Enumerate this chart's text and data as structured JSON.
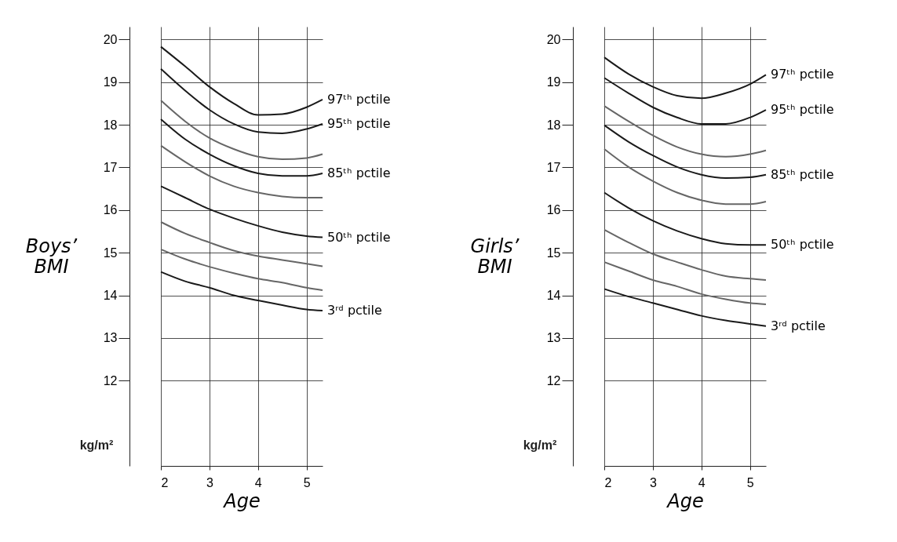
{
  "chart_data": [
    {
      "type": "line",
      "ylabel": "Boys’ BMI",
      "xlabel": "Age",
      "annotations": [
        "kg/m²"
      ],
      "xlim": [
        2,
        5.33
      ],
      "xticks": [
        2,
        3,
        4,
        5
      ],
      "ylim": [
        10,
        20.3
      ],
      "yticks": [
        12,
        13,
        14,
        15,
        16,
        17,
        18,
        19,
        20
      ],
      "grid": true,
      "x": [
        2,
        2.5,
        3,
        3.5,
        4,
        4.5,
        5,
        5.33
      ],
      "series": [
        {
          "name": "97ᵗʰ pctile",
          "color": "#1a1a1a",
          "values": [
            19.83,
            19.37,
            18.89,
            18.5,
            18.23,
            18.25,
            18.41,
            18.59
          ]
        },
        {
          "name": "95ᵗʰ pctile",
          "color": "#1a1a1a",
          "values": [
            19.31,
            18.8,
            18.35,
            18.02,
            17.83,
            17.8,
            17.9,
            18.02
          ]
        },
        {
          "color": "#666666",
          "values": [
            18.57,
            18.08,
            17.69,
            17.43,
            17.25,
            17.19,
            17.22,
            17.31
          ]
        },
        {
          "name": "85ᵗʰ pctile",
          "color": "#1a1a1a",
          "values": [
            18.13,
            17.66,
            17.31,
            17.04,
            16.86,
            16.8,
            16.8,
            16.86
          ]
        },
        {
          "color": "#666666",
          "values": [
            17.51,
            17.13,
            16.8,
            16.56,
            16.41,
            16.32,
            16.29,
            16.29
          ]
        },
        {
          "name": "50ᵗʰ pctile",
          "color": "#1a1a1a",
          "values": [
            16.56,
            16.29,
            16.02,
            15.81,
            15.63,
            15.48,
            15.39,
            15.36
          ]
        },
        {
          "color": "#666666",
          "values": [
            15.72,
            15.45,
            15.24,
            15.05,
            14.92,
            14.83,
            14.74,
            14.68
          ]
        },
        {
          "color": "#666666",
          "values": [
            15.08,
            14.85,
            14.67,
            14.52,
            14.39,
            14.3,
            14.18,
            14.12
          ]
        },
        {
          "name": "3ʳᵈ pctile",
          "color": "#1a1a1a",
          "values": [
            14.55,
            14.33,
            14.18,
            14.0,
            13.88,
            13.77,
            13.67,
            13.64
          ]
        }
      ]
    },
    {
      "type": "line",
      "ylabel": "Girls’ BMI",
      "xlabel": "Age",
      "annotations": [
        "kg/m²"
      ],
      "xlim": [
        2,
        5.33
      ],
      "xticks": [
        2,
        3,
        4,
        5
      ],
      "ylim": [
        10,
        20.3
      ],
      "yticks": [
        12,
        13,
        14,
        15,
        16,
        17,
        18,
        19,
        20
      ],
      "grid": true,
      "x": [
        2,
        2.5,
        3,
        3.5,
        4,
        4.5,
        5,
        5.33
      ],
      "series": [
        {
          "name": "97ᵗʰ pctile",
          "color": "#1a1a1a",
          "values": [
            19.58,
            19.19,
            18.89,
            18.68,
            18.62,
            18.74,
            18.95,
            19.17
          ]
        },
        {
          "name": "95ᵗʰ pctile",
          "color": "#1a1a1a",
          "values": [
            19.1,
            18.74,
            18.41,
            18.17,
            18.02,
            18.02,
            18.17,
            18.35
          ]
        },
        {
          "color": "#666666",
          "values": [
            18.44,
            18.08,
            17.75,
            17.48,
            17.31,
            17.25,
            17.31,
            17.4
          ]
        },
        {
          "name": "85ᵗʰ pctile",
          "color": "#1a1a1a",
          "values": [
            17.99,
            17.6,
            17.28,
            17.01,
            16.83,
            16.75,
            16.77,
            16.83
          ]
        },
        {
          "color": "#666666",
          "values": [
            17.43,
            17.01,
            16.68,
            16.41,
            16.23,
            16.14,
            16.14,
            16.2
          ]
        },
        {
          "name": "50ᵗʰ pctile",
          "color": "#1a1a1a",
          "values": [
            16.41,
            16.05,
            15.75,
            15.51,
            15.33,
            15.21,
            15.18,
            15.18
          ]
        },
        {
          "color": "#666666",
          "values": [
            15.54,
            15.24,
            14.97,
            14.78,
            14.6,
            14.45,
            14.39,
            14.36
          ]
        },
        {
          "color": "#666666",
          "values": [
            14.78,
            14.57,
            14.36,
            14.21,
            14.03,
            13.91,
            13.82,
            13.79
          ]
        },
        {
          "name": "3ʳᵈ pctile",
          "color": "#1a1a1a",
          "values": [
            14.15,
            13.97,
            13.82,
            13.67,
            13.52,
            13.41,
            13.33,
            13.28
          ]
        }
      ]
    }
  ]
}
